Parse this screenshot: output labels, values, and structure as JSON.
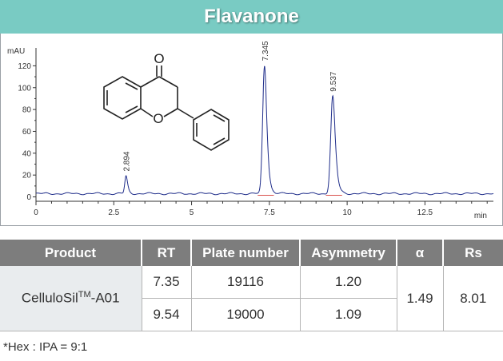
{
  "title": "Flavanone",
  "chart_data": {
    "type": "line",
    "ylabel": "mAU",
    "xlabel": "min",
    "xlim": [
      0,
      14.7
    ],
    "ylim": [
      -4,
      132
    ],
    "x_ticks": [
      "0",
      "2.5",
      "5",
      "7.5",
      "10",
      "12.5"
    ],
    "x_tick_values": [
      0,
      2.5,
      5,
      7.5,
      10,
      12.5
    ],
    "y_ticks": [
      "0",
      "20",
      "40",
      "60",
      "80",
      "100",
      "120"
    ],
    "y_tick_values": [
      0,
      20,
      40,
      60,
      80,
      100,
      120
    ],
    "peaks": [
      {
        "label": "2.894",
        "rt": 2.894,
        "height": 16,
        "width": 0.04
      },
      {
        "label": "7.345",
        "rt": 7.345,
        "height": 117,
        "width": 0.06
      },
      {
        "label": "9.537",
        "rt": 9.537,
        "height": 89,
        "width": 0.065
      }
    ],
    "baseline": 3,
    "line_color": "#1f2d8a",
    "baseline_marker_color": "#d9534f"
  },
  "table": {
    "headers": [
      "Product",
      "RT",
      "Plate number",
      "Asymmetry",
      "α",
      "Rs"
    ],
    "product_name": "CelluloSil",
    "product_sup": "TM",
    "product_suffix": "-A01",
    "rows": [
      {
        "rt": "7.35",
        "plate": "19116",
        "asym": "1.20"
      },
      {
        "rt": "9.54",
        "plate": "19000",
        "asym": "1.09"
      }
    ],
    "alpha": "1.49",
    "rs": "8.01"
  },
  "footnote": "*Hex : IPA = 9:1"
}
